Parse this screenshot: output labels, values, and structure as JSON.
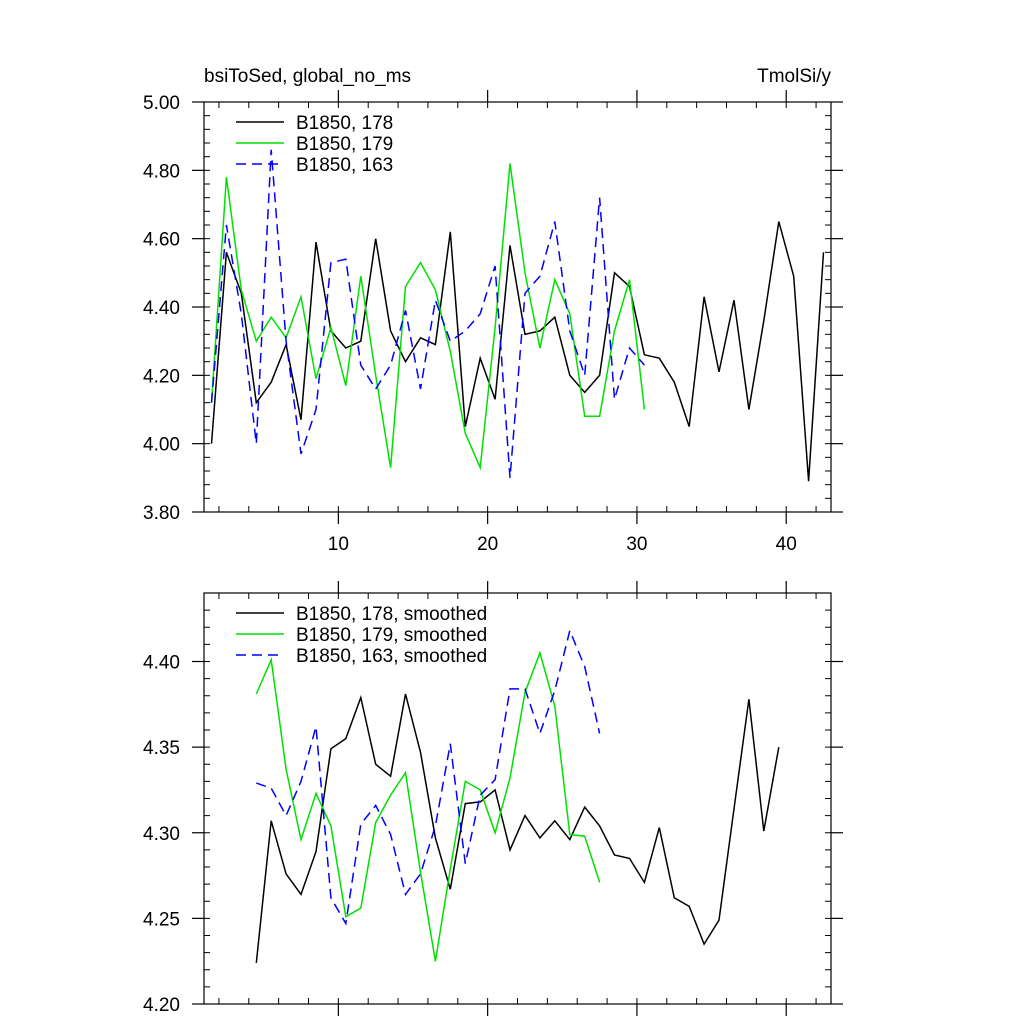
{
  "chart_data": [
    {
      "type": "line",
      "title_left": "bsiToSed, global_no_ms",
      "title_right": "TmolSi/y",
      "xlim": [
        1,
        43
      ],
      "ylim": [
        3.8,
        5.0
      ],
      "xticks": [
        10,
        20,
        30,
        40
      ],
      "xtick_labels": [
        "10",
        "20",
        "30",
        "40"
      ],
      "yticks": [
        3.8,
        4.0,
        4.2,
        4.4,
        4.6,
        4.8,
        5.0
      ],
      "ytick_labels": [
        "3.80",
        "4.00",
        "4.20",
        "4.40",
        "4.60",
        "4.80",
        "5.00"
      ],
      "legend_position": "top-left",
      "series": [
        {
          "name": "B1850, 178",
          "color": "#000000",
          "dashed": false,
          "x": [
            1.5,
            2.5,
            3.5,
            4.5,
            5.5,
            6.5,
            7.5,
            8.5,
            9.5,
            10.5,
            11.5,
            12.5,
            13.5,
            14.5,
            15.5,
            16.5,
            17.5,
            18.5,
            19.5,
            20.5,
            21.5,
            22.5,
            23.5,
            24.5,
            25.5,
            26.5,
            27.5,
            28.5,
            29.5,
            30.5,
            31.5,
            32.5,
            33.5,
            34.5,
            35.5,
            36.5,
            37.5,
            38.5,
            39.5,
            40.5,
            41.5,
            42.5
          ],
          "y": [
            4.0,
            4.56,
            4.44,
            4.12,
            4.18,
            4.29,
            4.07,
            4.59,
            4.33,
            4.28,
            4.3,
            4.6,
            4.33,
            4.24,
            4.31,
            4.29,
            4.62,
            4.05,
            4.25,
            4.13,
            4.58,
            4.32,
            4.33,
            4.37,
            4.2,
            4.15,
            4.2,
            4.5,
            4.46,
            4.26,
            4.25,
            4.18,
            4.05,
            4.43,
            4.21,
            4.42,
            4.1,
            4.36,
            4.65,
            4.49,
            3.89,
            4.56
          ]
        },
        {
          "name": "B1850, 179",
          "color": "#00e000",
          "dashed": false,
          "x": [
            1.5,
            2.5,
            3.5,
            4.5,
            5.5,
            6.5,
            7.5,
            8.5,
            9.5,
            10.5,
            11.5,
            12.5,
            13.5,
            14.5,
            15.5,
            16.5,
            17.5,
            18.5,
            19.5,
            20.5,
            21.5,
            22.5,
            23.5,
            24.5,
            25.5,
            26.5,
            27.5,
            28.5,
            29.5,
            30.5
          ],
          "y": [
            4.12,
            4.78,
            4.45,
            4.3,
            4.37,
            4.31,
            4.43,
            4.19,
            4.34,
            4.17,
            4.49,
            4.2,
            3.93,
            4.46,
            4.53,
            4.45,
            4.27,
            4.03,
            3.93,
            4.34,
            4.82,
            4.5,
            4.28,
            4.48,
            4.38,
            4.08,
            4.08,
            4.33,
            4.48,
            4.1
          ]
        },
        {
          "name": "B1850, 163",
          "color": "#0000ff",
          "dashed": true,
          "x": [
            1.5,
            2.5,
            3.5,
            4.5,
            5.5,
            6.5,
            7.5,
            8.5,
            9.5,
            10.5,
            11.5,
            12.5,
            13.5,
            14.5,
            15.5,
            16.5,
            17.5,
            18.5,
            19.5,
            20.5,
            21.5,
            22.5,
            23.5,
            24.5,
            25.5,
            26.5,
            27.5,
            28.5,
            29.5,
            30.5
          ],
          "y": [
            4.12,
            4.64,
            4.38,
            4.0,
            4.86,
            4.3,
            3.97,
            4.1,
            4.53,
            4.54,
            4.23,
            4.16,
            4.23,
            4.39,
            4.16,
            4.42,
            4.3,
            4.33,
            4.38,
            4.52,
            3.9,
            4.44,
            4.49,
            4.65,
            4.33,
            4.2,
            4.72,
            4.13,
            4.28,
            4.23
          ]
        }
      ]
    },
    {
      "type": "line",
      "xlim": [
        1,
        43
      ],
      "ylim": [
        4.2,
        4.44
      ],
      "xticks": [
        10,
        20,
        30,
        40
      ],
      "xtick_labels": [],
      "yticks": [
        4.2,
        4.25,
        4.3,
        4.35,
        4.4
      ],
      "ytick_labels": [
        "4.20",
        "4.25",
        "4.30",
        "4.35",
        "4.40"
      ],
      "legend_position": "top-left",
      "series": [
        {
          "name": "B1850, 178, smoothed",
          "color": "#000000",
          "dashed": false,
          "x": [
            4.5,
            5.5,
            6.5,
            7.5,
            8.5,
            9.5,
            10.5,
            11.5,
            12.5,
            13.5,
            14.5,
            15.5,
            16.5,
            17.5,
            18.5,
            19.5,
            20.5,
            21.5,
            22.5,
            23.5,
            24.5,
            25.5,
            26.5,
            27.5,
            28.5,
            29.5,
            30.5,
            31.5,
            32.5,
            33.5,
            34.5,
            35.5,
            36.5,
            37.5,
            38.5,
            39.5
          ],
          "y": [
            4.224,
            4.307,
            4.276,
            4.264,
            4.289,
            4.349,
            4.355,
            4.379,
            4.34,
            4.333,
            4.381,
            4.347,
            4.297,
            4.267,
            4.317,
            4.318,
            4.325,
            4.29,
            4.31,
            4.297,
            4.307,
            4.296,
            4.315,
            4.304,
            4.287,
            4.285,
            4.271,
            4.303,
            4.262,
            4.257,
            4.235,
            4.249,
            4.314,
            4.378,
            4.301,
            4.35
          ]
        },
        {
          "name": "B1850, 179, smoothed",
          "color": "#00e000",
          "dashed": false,
          "x": [
            4.5,
            5.5,
            6.5,
            7.5,
            8.5,
            9.5,
            10.5,
            11.5,
            12.5,
            13.5,
            14.5,
            15.5,
            16.5,
            17.5,
            18.5,
            19.5,
            20.5,
            21.5,
            22.5,
            23.5,
            24.5,
            25.5,
            26.5,
            27.5
          ],
          "y": [
            4.381,
            4.401,
            4.337,
            4.296,
            4.323,
            4.304,
            4.251,
            4.256,
            4.306,
            4.322,
            4.335,
            4.277,
            4.225,
            4.279,
            4.33,
            4.325,
            4.3,
            4.332,
            4.382,
            4.405,
            4.374,
            4.299,
            4.298,
            4.271
          ]
        },
        {
          "name": "B1850, 163, smoothed",
          "color": "#0000ff",
          "dashed": true,
          "x": [
            4.5,
            5.5,
            6.5,
            7.5,
            8.5,
            9.5,
            10.5,
            11.5,
            12.5,
            13.5,
            14.5,
            15.5,
            16.5,
            17.5,
            18.5,
            19.5,
            20.5,
            21.5,
            22.5,
            23.5,
            24.5,
            25.5,
            26.5,
            27.5
          ],
          "y": [
            4.329,
            4.326,
            4.31,
            4.33,
            4.362,
            4.262,
            4.247,
            4.305,
            4.316,
            4.299,
            4.264,
            4.276,
            4.304,
            4.352,
            4.282,
            4.322,
            4.331,
            4.384,
            4.384,
            4.358,
            4.383,
            4.418,
            4.397,
            4.358
          ]
        }
      ]
    }
  ]
}
